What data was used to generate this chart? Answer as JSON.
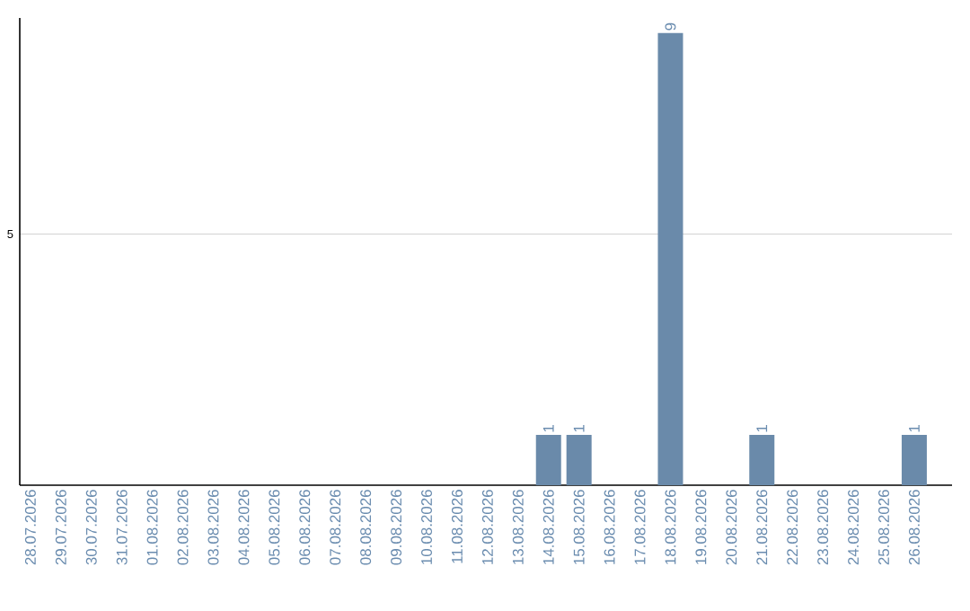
{
  "chart_data": {
    "type": "bar",
    "categories": [
      "28.07.2026",
      "29.07.2026",
      "30.07.2026",
      "31.07.2026",
      "01.08.2026",
      "02.08.2026",
      "03.08.2026",
      "04.08.2026",
      "05.08.2026",
      "06.08.2026",
      "07.08.2026",
      "08.08.2026",
      "09.08.2026",
      "10.08.2026",
      "11.08.2026",
      "12.08.2026",
      "13.08.2026",
      "14.08.2026",
      "15.08.2026",
      "16.08.2026",
      "17.08.2026",
      "18.08.2026",
      "19.08.2026",
      "20.08.2026",
      "21.08.2026",
      "22.08.2026",
      "23.08.2026",
      "24.08.2026",
      "25.08.2026",
      "26.08.2026"
    ],
    "values": [
      null,
      null,
      null,
      null,
      null,
      null,
      null,
      null,
      null,
      null,
      null,
      null,
      null,
      null,
      null,
      null,
      null,
      1,
      1,
      null,
      null,
      9,
      null,
      null,
      1,
      null,
      null,
      null,
      null,
      1
    ],
    "data_labels": true,
    "color": "#6a8aaa",
    "ylim": [
      0,
      9.3
    ],
    "yticks": [
      5
    ],
    "grid": "y"
  }
}
